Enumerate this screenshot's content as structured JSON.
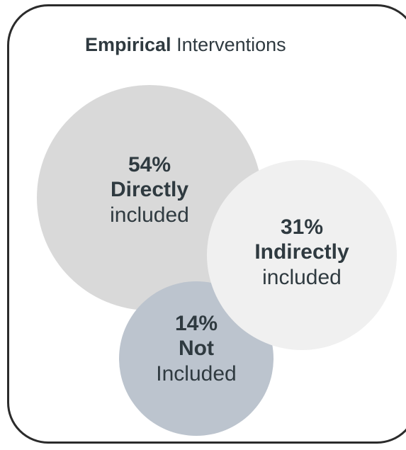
{
  "title": {
    "bold": "Empirical",
    "rest": " Interventions"
  },
  "bubbles": {
    "direct": {
      "percent": "54%",
      "label": "Directly",
      "sub": "included",
      "value": 54,
      "color": "#d9d9d9"
    },
    "indirect": {
      "percent": "31%",
      "label": "Indirectly",
      "sub": "included",
      "value": 31,
      "color": "#f0f0f0"
    },
    "not": {
      "percent": "14%",
      "label": "Not",
      "sub": "Included",
      "value": 14,
      "color": "#bcc4ce"
    }
  }
}
